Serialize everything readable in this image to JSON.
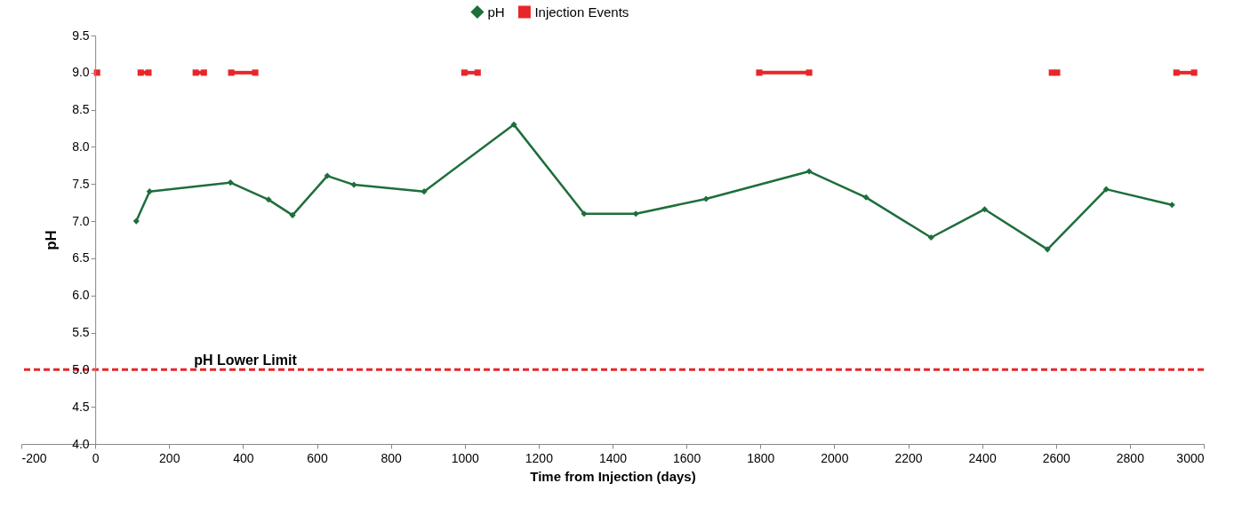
{
  "chart_data": {
    "type": "line",
    "xlabel": "Time from Injection (days)",
    "ylabel": "pH",
    "xlim": [
      -200,
      3000
    ],
    "ylim": [
      4,
      9.5
    ],
    "xticks": [
      -200,
      0,
      200,
      400,
      600,
      800,
      1000,
      1200,
      1400,
      1600,
      1800,
      2000,
      2200,
      2400,
      2600,
      2800,
      3000
    ],
    "yticks": [
      {
        "value": 4,
        "label": "4.0"
      },
      4.5,
      {
        "value": 5,
        "label": "5.0"
      },
      5.5,
      {
        "value": 6,
        "label": "6.0"
      },
      6.5,
      {
        "value": 7,
        "label": "7.0"
      },
      7.5,
      {
        "value": 8,
        "label": "8.0"
      },
      8.5,
      {
        "value": 9,
        "label": "9.0"
      },
      9.5
    ],
    "grid": false,
    "legend": "top",
    "line_style": "solid",
    "series": [
      {
        "name": "pH",
        "color": "#1e6e3c",
        "marker": "diamond",
        "x": [
          111,
          147,
          366,
          469,
          534,
          628,
          700,
          890,
          1133,
          1323,
          1463,
          1653,
          1932,
          2086,
          2262,
          2407,
          2577,
          2736,
          2914
        ],
        "values": [
          7.0,
          7.4,
          7.52,
          7.29,
          7.08,
          7.61,
          7.49,
          7.4,
          8.3,
          7.1,
          7.1,
          7.3,
          7.67,
          7.32,
          6.78,
          7.16,
          6.62,
          7.43,
          7.22
        ]
      },
      {
        "name": "Injection Events",
        "color": "#e8262a",
        "marker": "square",
        "x": [
          5,
          null,
          123,
          144,
          null,
          272,
          294,
          null,
          368,
          433,
          null,
          999,
          1035,
          null,
          1797,
          1932,
          null,
          2589,
          2603,
          null,
          2926,
          2974
        ],
        "values": [
          9,
          null,
          9,
          9,
          null,
          9,
          9,
          null,
          9,
          9,
          null,
          9,
          9,
          null,
          9,
          9,
          null,
          9,
          9,
          null,
          9,
          9
        ]
      }
    ],
    "ref_lines": [
      {
        "axis": "y",
        "value": 5,
        "label": "pH Lower Limit",
        "color": "#e8262a",
        "line_style": "dashed"
      }
    ]
  }
}
